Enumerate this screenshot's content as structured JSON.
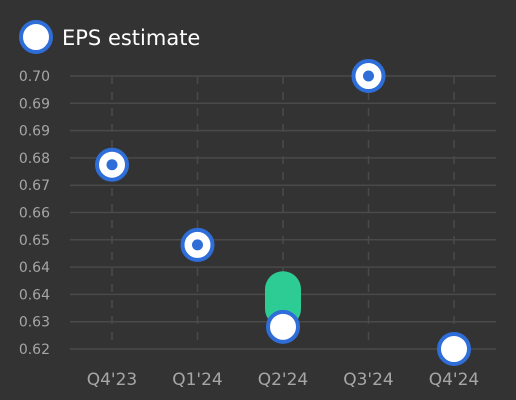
{
  "chart_data": {
    "type": "scatter",
    "categories": [
      "Q4'23",
      "Q1'24",
      "Q2'24",
      "Q3'24",
      "Q4'24"
    ],
    "y_ticks": [
      "0.70",
      "0.69",
      "0.69",
      "0.68",
      "0.67",
      "0.66",
      "0.65",
      "0.64",
      "0.64",
      "0.63",
      "0.62"
    ],
    "ylim": [
      0.62,
      0.7
    ],
    "grid": true,
    "legend_position": "top-left",
    "series": [
      {
        "name": "EPS estimate",
        "values": [
          0.674,
          0.6505,
          0.6265,
          0.7,
          0.62
        ],
        "highlighted": [
          true,
          true,
          false,
          true,
          false
        ]
      }
    ],
    "range_bar": {
      "category": "Q2'24",
      "low": 0.6265,
      "high": 0.6375
    },
    "colors": {
      "background": "#333333",
      "grid": "#4a4a4a",
      "marker_fill": "#ffffff",
      "marker_stroke": "#2f6ed8",
      "marker_dot": "#2f6ed8",
      "range_bar": "#2ecc95",
      "tick_text": "#a6a6a6",
      "legend_text": "#ffffff"
    }
  }
}
